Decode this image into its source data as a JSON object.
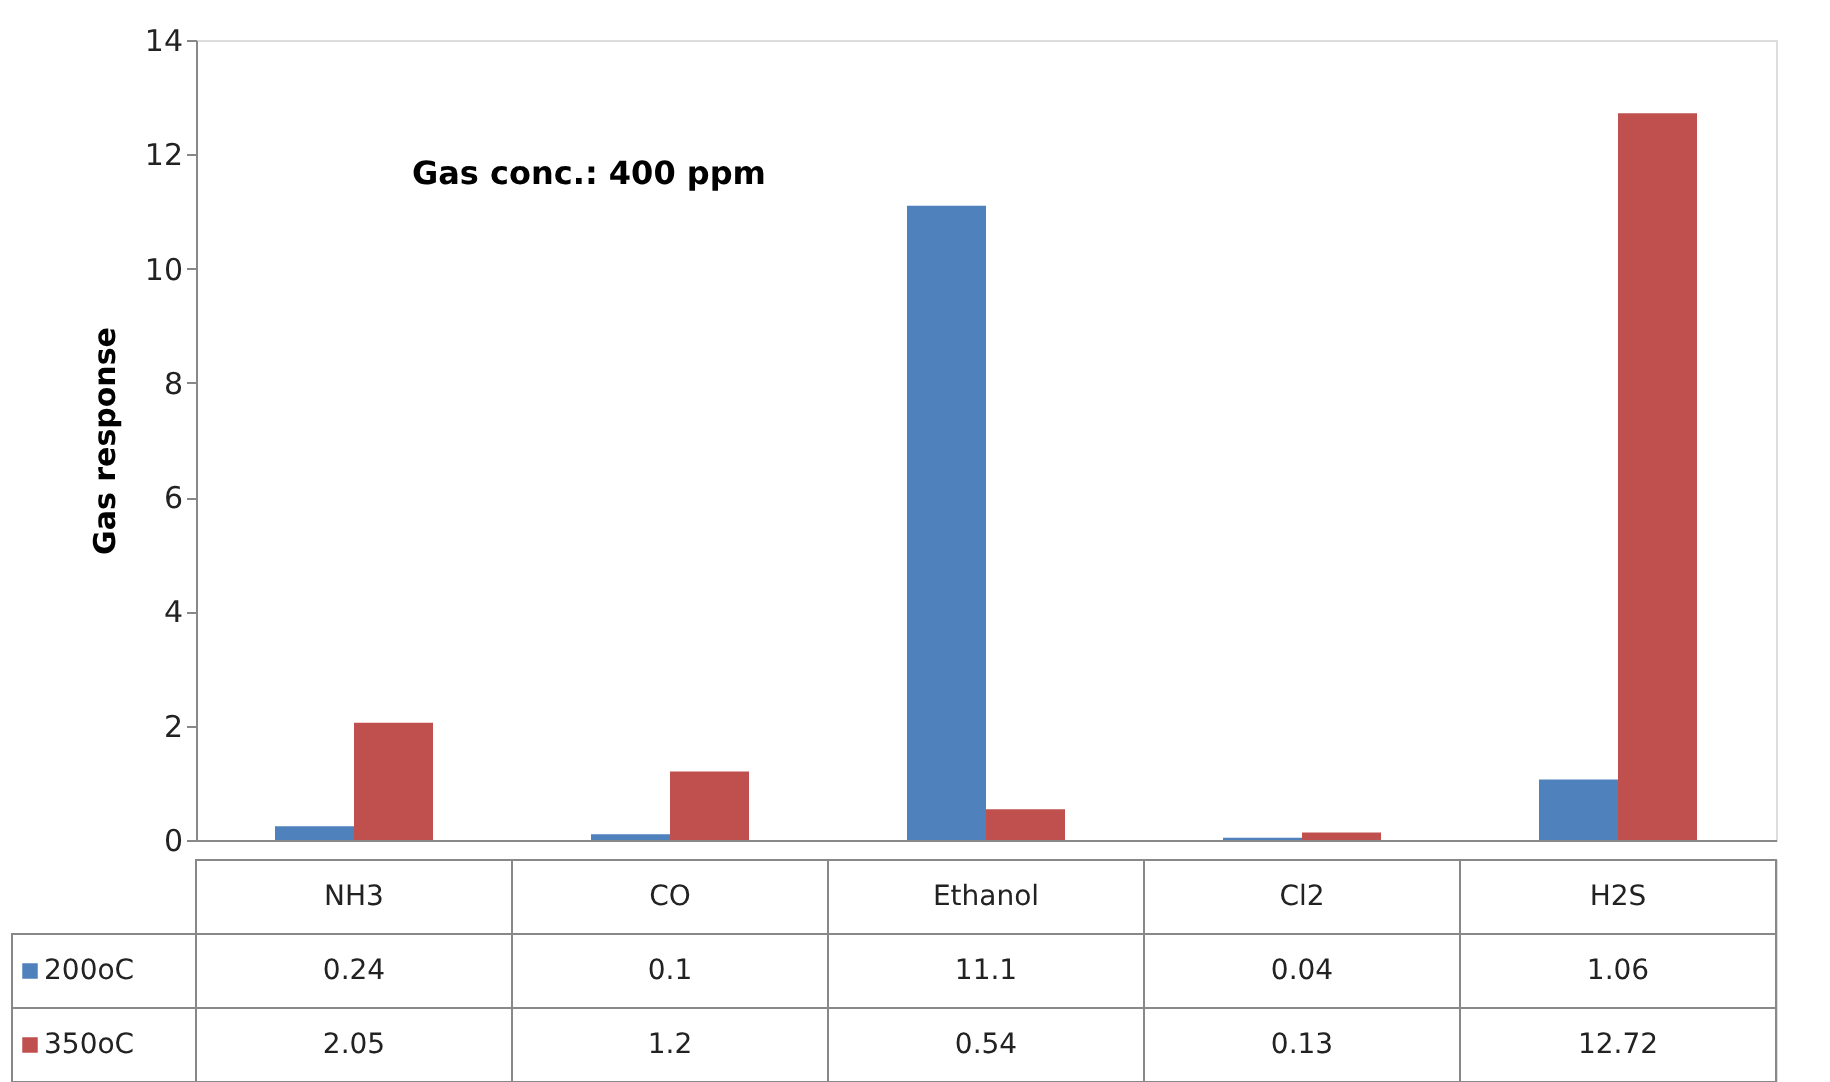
{
  "chart_data": {
    "type": "bar",
    "ylabel": "Gas response",
    "annotations": [
      "Gas conc.: 400 ppm"
    ],
    "categories": [
      "NH3",
      "CO",
      "Ethanol",
      "Cl2",
      "H2S"
    ],
    "series": [
      {
        "name": "200oC",
        "color": "#4f81bd",
        "values": [
          0.24,
          0.1,
          11.1,
          0.04,
          1.06
        ]
      },
      {
        "name": "350oC",
        "color": "#c0504d",
        "values": [
          2.05,
          1.2,
          0.54,
          0.13,
          12.72
        ]
      }
    ],
    "ylim": [
      0,
      14
    ],
    "yticks": [
      0,
      2,
      4,
      6,
      8,
      10,
      12,
      14
    ],
    "grid": false,
    "legend": "bottom",
    "data_labels": true
  }
}
